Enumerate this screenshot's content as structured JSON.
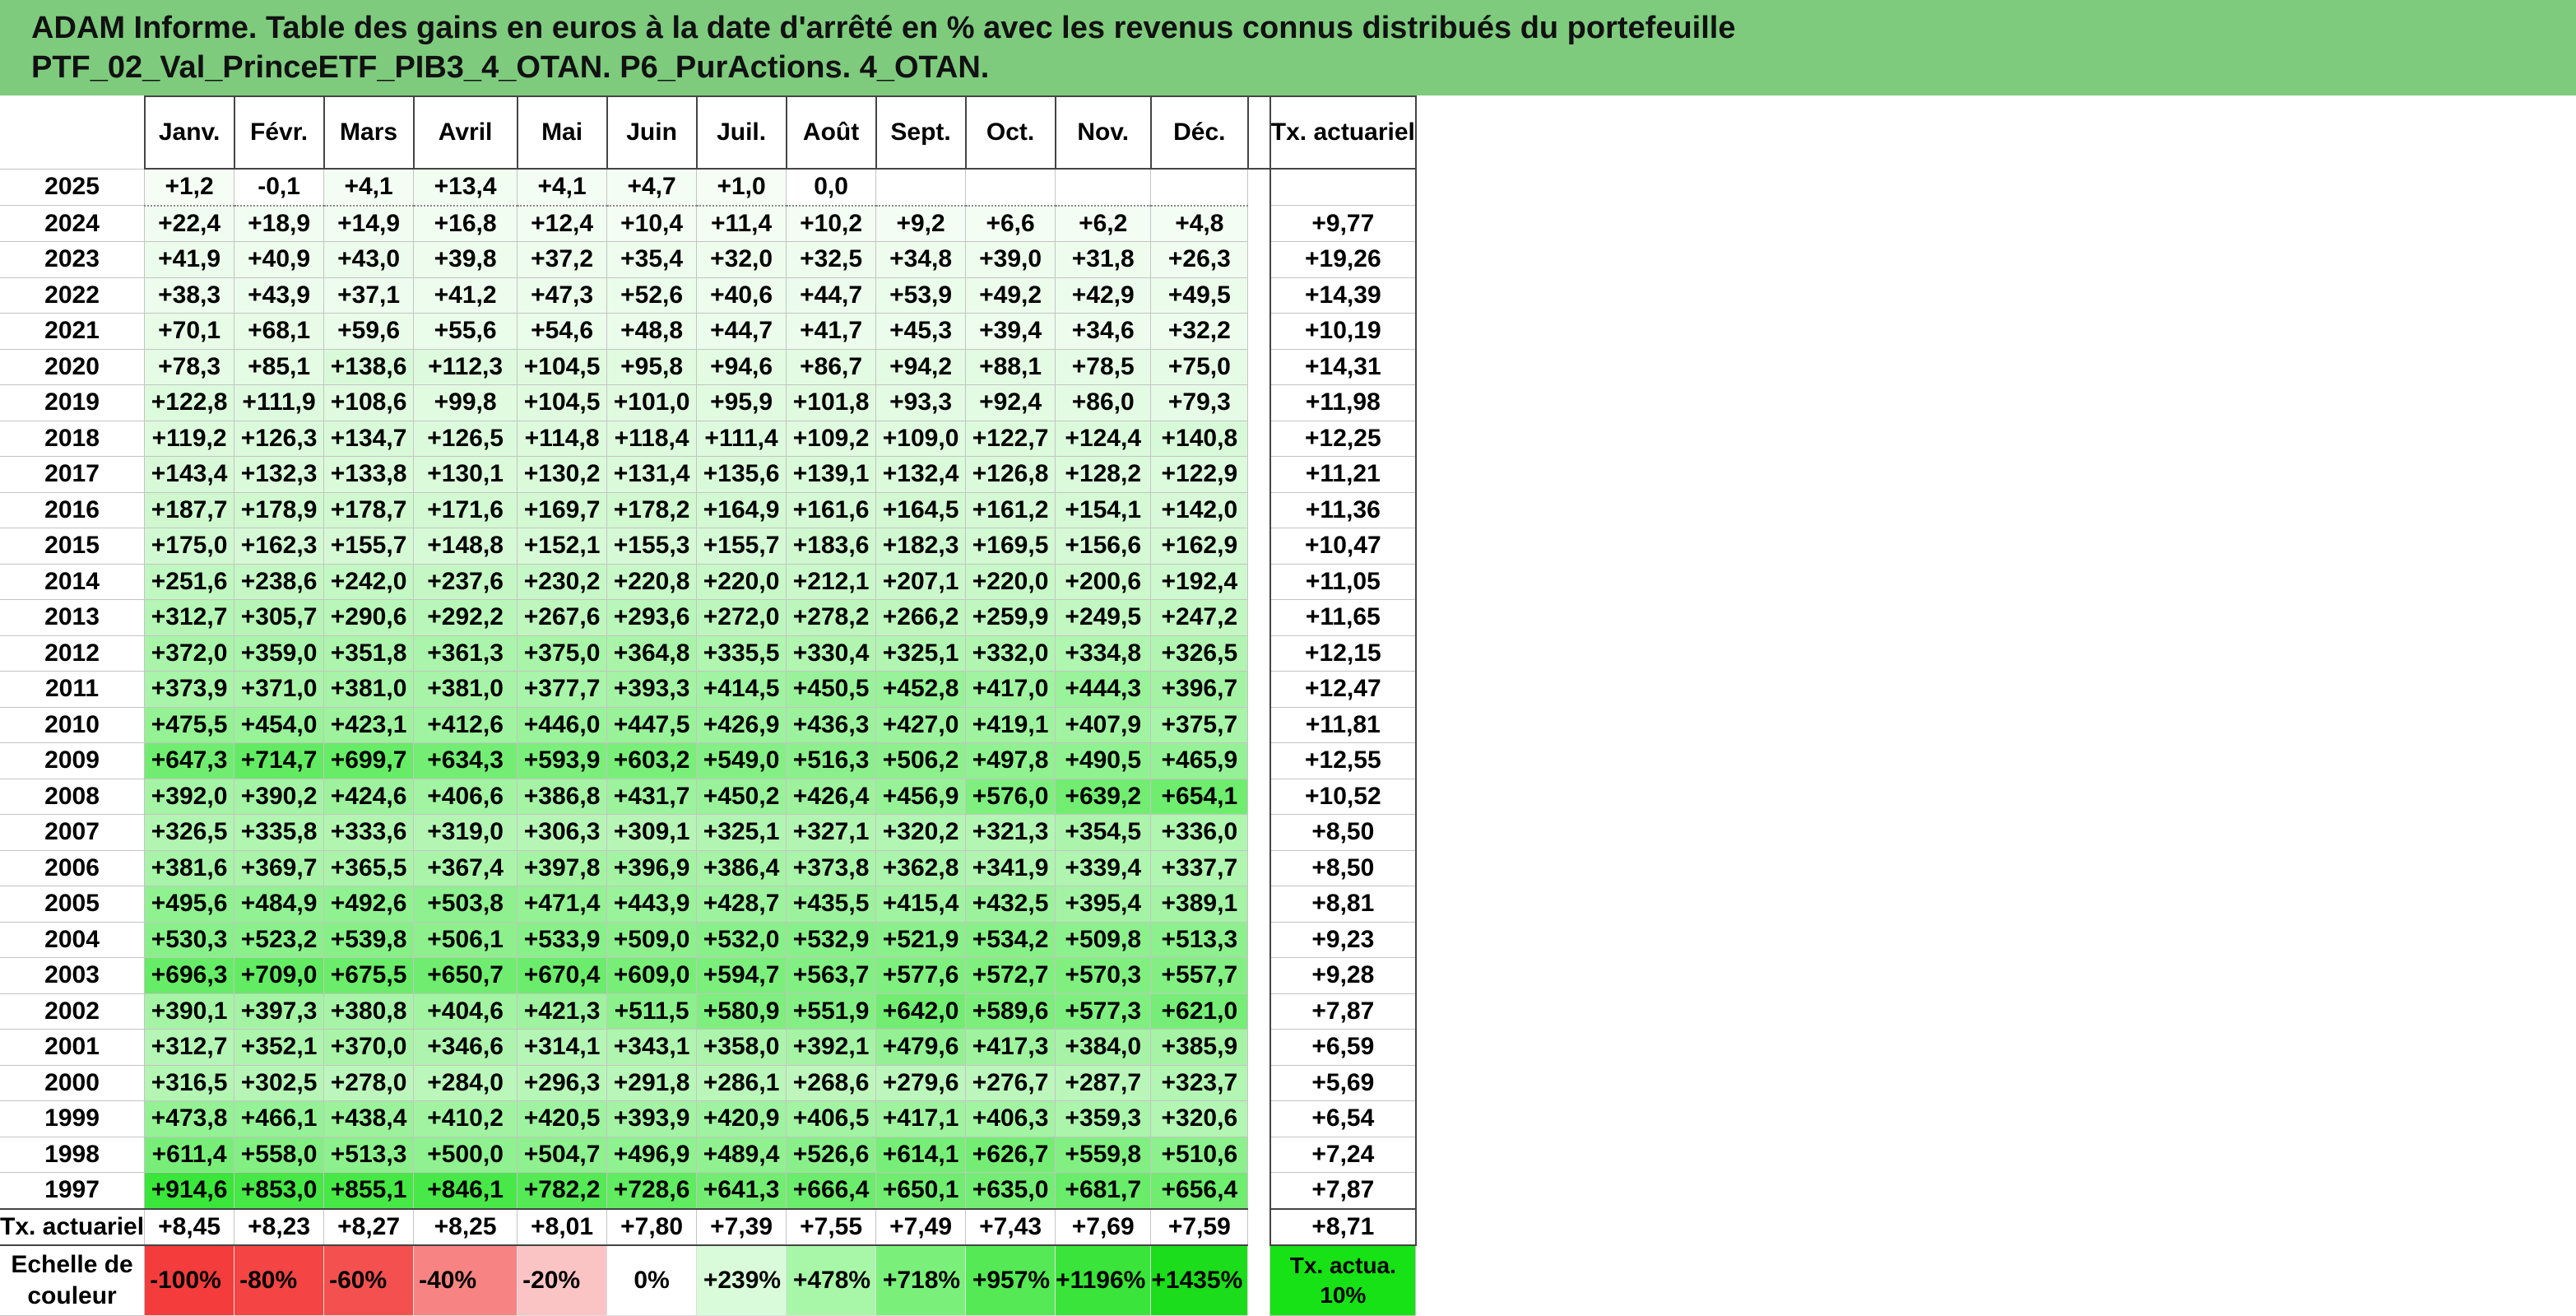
{
  "title": {
    "line1": "ADAM Informe. Table des gains en euros à la date d'arrêté en % avec les revenus connus distribués du portefeuille",
    "line2": "PTF_02_Val_PrinceETF_PIB3_4_OTAN. P6_PurActions. 4_OTAN."
  },
  "months": [
    "Janv.",
    "Févr.",
    "Mars",
    "Avril",
    "Mai",
    "Juin",
    "Juil.",
    "Août",
    "Sept.",
    "Oct.",
    "Nov.",
    "Déc."
  ],
  "tx_header": "Tx. actuariel",
  "rows": [
    {
      "year": "2025",
      "values": [
        "+1,2",
        "-0,1",
        "+4,1",
        "+13,4",
        "+4,1",
        "+4,7",
        "+1,0",
        "0,0",
        "",
        "",
        "",
        ""
      ],
      "tx": ""
    },
    {
      "year": "2024",
      "values": [
        "+22,4",
        "+18,9",
        "+14,9",
        "+16,8",
        "+12,4",
        "+10,4",
        "+11,4",
        "+10,2",
        "+9,2",
        "+6,6",
        "+6,2",
        "+4,8"
      ],
      "tx": "+9,77"
    },
    {
      "year": "2023",
      "values": [
        "+41,9",
        "+40,9",
        "+43,0",
        "+39,8",
        "+37,2",
        "+35,4",
        "+32,0",
        "+32,5",
        "+34,8",
        "+39,0",
        "+31,8",
        "+26,3"
      ],
      "tx": "+19,26"
    },
    {
      "year": "2022",
      "values": [
        "+38,3",
        "+43,9",
        "+37,1",
        "+41,2",
        "+47,3",
        "+52,6",
        "+40,6",
        "+44,7",
        "+53,9",
        "+49,2",
        "+42,9",
        "+49,5"
      ],
      "tx": "+14,39"
    },
    {
      "year": "2021",
      "values": [
        "+70,1",
        "+68,1",
        "+59,6",
        "+55,6",
        "+54,6",
        "+48,8",
        "+44,7",
        "+41,7",
        "+45,3",
        "+39,4",
        "+34,6",
        "+32,2"
      ],
      "tx": "+10,19"
    },
    {
      "year": "2020",
      "values": [
        "+78,3",
        "+85,1",
        "+138,6",
        "+112,3",
        "+104,5",
        "+95,8",
        "+94,6",
        "+86,7",
        "+94,2",
        "+88,1",
        "+78,5",
        "+75,0"
      ],
      "tx": "+14,31"
    },
    {
      "year": "2019",
      "values": [
        "+122,8",
        "+111,9",
        "+108,6",
        "+99,8",
        "+104,5",
        "+101,0",
        "+95,9",
        "+101,8",
        "+93,3",
        "+92,4",
        "+86,0",
        "+79,3"
      ],
      "tx": "+11,98"
    },
    {
      "year": "2018",
      "values": [
        "+119,2",
        "+126,3",
        "+134,7",
        "+126,5",
        "+114,8",
        "+118,4",
        "+111,4",
        "+109,2",
        "+109,0",
        "+122,7",
        "+124,4",
        "+140,8"
      ],
      "tx": "+12,25"
    },
    {
      "year": "2017",
      "values": [
        "+143,4",
        "+132,3",
        "+133,8",
        "+130,1",
        "+130,2",
        "+131,4",
        "+135,6",
        "+139,1",
        "+132,4",
        "+126,8",
        "+128,2",
        "+122,9"
      ],
      "tx": "+11,21"
    },
    {
      "year": "2016",
      "values": [
        "+187,7",
        "+178,9",
        "+178,7",
        "+171,6",
        "+169,7",
        "+178,2",
        "+164,9",
        "+161,6",
        "+164,5",
        "+161,2",
        "+154,1",
        "+142,0"
      ],
      "tx": "+11,36"
    },
    {
      "year": "2015",
      "values": [
        "+175,0",
        "+162,3",
        "+155,7",
        "+148,8",
        "+152,1",
        "+155,3",
        "+155,7",
        "+183,6",
        "+182,3",
        "+169,5",
        "+156,6",
        "+162,9"
      ],
      "tx": "+10,47"
    },
    {
      "year": "2014",
      "values": [
        "+251,6",
        "+238,6",
        "+242,0",
        "+237,6",
        "+230,2",
        "+220,8",
        "+220,0",
        "+212,1",
        "+207,1",
        "+220,0",
        "+200,6",
        "+192,4"
      ],
      "tx": "+11,05"
    },
    {
      "year": "2013",
      "values": [
        "+312,7",
        "+305,7",
        "+290,6",
        "+292,2",
        "+267,6",
        "+293,6",
        "+272,0",
        "+278,2",
        "+266,2",
        "+259,9",
        "+249,5",
        "+247,2"
      ],
      "tx": "+11,65"
    },
    {
      "year": "2012",
      "values": [
        "+372,0",
        "+359,0",
        "+351,8",
        "+361,3",
        "+375,0",
        "+364,8",
        "+335,5",
        "+330,4",
        "+325,1",
        "+332,0",
        "+334,8",
        "+326,5"
      ],
      "tx": "+12,15"
    },
    {
      "year": "2011",
      "values": [
        "+373,9",
        "+371,0",
        "+381,0",
        "+381,0",
        "+377,7",
        "+393,3",
        "+414,5",
        "+450,5",
        "+452,8",
        "+417,0",
        "+444,3",
        "+396,7"
      ],
      "tx": "+12,47"
    },
    {
      "year": "2010",
      "values": [
        "+475,5",
        "+454,0",
        "+423,1",
        "+412,6",
        "+446,0",
        "+447,5",
        "+426,9",
        "+436,3",
        "+427,0",
        "+419,1",
        "+407,9",
        "+375,7"
      ],
      "tx": "+11,81"
    },
    {
      "year": "2009",
      "values": [
        "+647,3",
        "+714,7",
        "+699,7",
        "+634,3",
        "+593,9",
        "+603,2",
        "+549,0",
        "+516,3",
        "+506,2",
        "+497,8",
        "+490,5",
        "+465,9"
      ],
      "tx": "+12,55"
    },
    {
      "year": "2008",
      "values": [
        "+392,0",
        "+390,2",
        "+424,6",
        "+406,6",
        "+386,8",
        "+431,7",
        "+450,2",
        "+426,4",
        "+456,9",
        "+576,0",
        "+639,2",
        "+654,1"
      ],
      "tx": "+10,52"
    },
    {
      "year": "2007",
      "values": [
        "+326,5",
        "+335,8",
        "+333,6",
        "+319,0",
        "+306,3",
        "+309,1",
        "+325,1",
        "+327,1",
        "+320,2",
        "+321,3",
        "+354,5",
        "+336,0"
      ],
      "tx": "+8,50"
    },
    {
      "year": "2006",
      "values": [
        "+381,6",
        "+369,7",
        "+365,5",
        "+367,4",
        "+397,8",
        "+396,9",
        "+386,4",
        "+373,8",
        "+362,8",
        "+341,9",
        "+339,4",
        "+337,7"
      ],
      "tx": "+8,50"
    },
    {
      "year": "2005",
      "values": [
        "+495,6",
        "+484,9",
        "+492,6",
        "+503,8",
        "+471,4",
        "+443,9",
        "+428,7",
        "+435,5",
        "+415,4",
        "+432,5",
        "+395,4",
        "+389,1"
      ],
      "tx": "+8,81"
    },
    {
      "year": "2004",
      "values": [
        "+530,3",
        "+523,2",
        "+539,8",
        "+506,1",
        "+533,9",
        "+509,0",
        "+532,0",
        "+532,9",
        "+521,9",
        "+534,2",
        "+509,8",
        "+513,3"
      ],
      "tx": "+9,23"
    },
    {
      "year": "2003",
      "values": [
        "+696,3",
        "+709,0",
        "+675,5",
        "+650,7",
        "+670,4",
        "+609,0",
        "+594,7",
        "+563,7",
        "+577,6",
        "+572,7",
        "+570,3",
        "+557,7"
      ],
      "tx": "+9,28"
    },
    {
      "year": "2002",
      "values": [
        "+390,1",
        "+397,3",
        "+380,8",
        "+404,6",
        "+421,3",
        "+511,5",
        "+580,9",
        "+551,9",
        "+642,0",
        "+589,6",
        "+577,3",
        "+621,0"
      ],
      "tx": "+7,87"
    },
    {
      "year": "2001",
      "values": [
        "+312,7",
        "+352,1",
        "+370,0",
        "+346,6",
        "+314,1",
        "+343,1",
        "+358,0",
        "+392,1",
        "+479,6",
        "+417,3",
        "+384,0",
        "+385,9"
      ],
      "tx": "+6,59"
    },
    {
      "year": "2000",
      "values": [
        "+316,5",
        "+302,5",
        "+278,0",
        "+284,0",
        "+296,3",
        "+291,8",
        "+286,1",
        "+268,6",
        "+279,6",
        "+276,7",
        "+287,7",
        "+323,7"
      ],
      "tx": "+5,69"
    },
    {
      "year": "1999",
      "values": [
        "+473,8",
        "+466,1",
        "+438,4",
        "+410,2",
        "+420,5",
        "+393,9",
        "+420,9",
        "+406,5",
        "+417,1",
        "+406,3",
        "+359,3",
        "+320,6"
      ],
      "tx": "+6,54"
    },
    {
      "year": "1998",
      "values": [
        "+611,4",
        "+558,0",
        "+513,3",
        "+500,0",
        "+504,7",
        "+496,9",
        "+489,4",
        "+526,6",
        "+614,1",
        "+626,7",
        "+559,8",
        "+510,6"
      ],
      "tx": "+7,24"
    },
    {
      "year": "1997",
      "values": [
        "+914,6",
        "+853,0",
        "+855,1",
        "+846,1",
        "+782,2",
        "+728,6",
        "+641,3",
        "+666,4",
        "+650,1",
        "+635,0",
        "+681,7",
        "+656,4"
      ],
      "tx": "+7,87"
    }
  ],
  "annual": {
    "label": "Tx. actuariel",
    "values": [
      "+8,45",
      "+8,23",
      "+8,27",
      "+8,25",
      "+8,01",
      "+7,80",
      "+7,39",
      "+7,55",
      "+7,49",
      "+7,43",
      "+7,69",
      "+7,59"
    ],
    "total": "+8,71"
  },
  "scale": {
    "label": "Echelle de couleur",
    "cells": [
      {
        "text": "-100%",
        "color": "#f43c3c"
      },
      {
        "text": "-80%",
        "color": "#f54444"
      },
      {
        "text": "-60%",
        "color": "#f55050"
      },
      {
        "text": "-40%",
        "color": "#f78383"
      },
      {
        "text": "-20%",
        "color": "#fbc4c4"
      },
      {
        "text": "0%",
        "color": "#ffffff"
      },
      {
        "text": "+239%",
        "color": "#d9fbd9"
      },
      {
        "text": "+478%",
        "color": "#a8f7a8"
      },
      {
        "text": "+718%",
        "color": "#7af07a"
      },
      {
        "text": "+957%",
        "color": "#55e955"
      },
      {
        "text": "+1196%",
        "color": "#3ae43a"
      },
      {
        "text": "+1435%",
        "color": "#1bdd1b"
      }
    ],
    "tx_label": "Tx. actua. 10%",
    "tx_color": "#16e216"
  },
  "colors": {
    "title_bg": "#7ecb7e",
    "max_green": "#1bdd1b"
  }
}
